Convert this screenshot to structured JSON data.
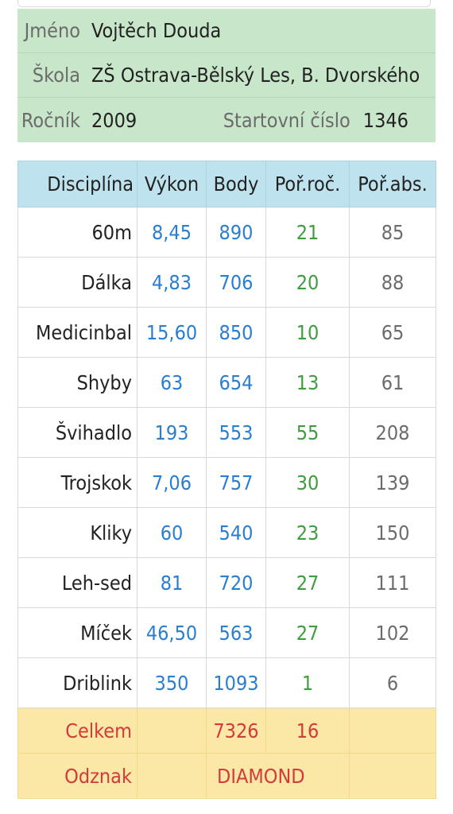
{
  "profile": {
    "name_label": "Jméno",
    "name": "Vojtěch Douda",
    "school_label": "Škola",
    "school": "ZŠ Ostrava-Bělský Les, B. Dvorského",
    "year_label": "Ročník",
    "year": "2009",
    "start_label": "Startovní číslo",
    "start_number": "1346"
  },
  "table": {
    "headers": {
      "discipline": "Disciplína",
      "performance": "Výkon",
      "points": "Body",
      "rank_year": "Poř.roč.",
      "rank_abs": "Poř.abs."
    },
    "rows": [
      {
        "discipline": "60m",
        "performance": "8,45",
        "points": "890",
        "rank_year": "21",
        "rank_abs": "85"
      },
      {
        "discipline": "Dálka",
        "performance": "4,83",
        "points": "706",
        "rank_year": "20",
        "rank_abs": "88"
      },
      {
        "discipline": "Medicinbal",
        "performance": "15,60",
        "points": "850",
        "rank_year": "10",
        "rank_abs": "65"
      },
      {
        "discipline": "Shyby",
        "performance": "63",
        "points": "654",
        "rank_year": "13",
        "rank_abs": "61"
      },
      {
        "discipline": "Švihadlo",
        "performance": "193",
        "points": "553",
        "rank_year": "55",
        "rank_abs": "208"
      },
      {
        "discipline": "Trojskok",
        "performance": "7,06",
        "points": "757",
        "rank_year": "30",
        "rank_abs": "139"
      },
      {
        "discipline": "Kliky",
        "performance": "60",
        "points": "540",
        "rank_year": "23",
        "rank_abs": "150"
      },
      {
        "discipline": "Leh-sed",
        "performance": "81",
        "points": "720",
        "rank_year": "27",
        "rank_abs": "111"
      },
      {
        "discipline": "Míček",
        "performance": "46,50",
        "points": "563",
        "rank_year": "27",
        "rank_abs": "102"
      },
      {
        "discipline": "Driblink",
        "performance": "350",
        "points": "1093",
        "rank_year": "1",
        "rank_abs": "6"
      }
    ],
    "total": {
      "label": "Celkem",
      "points": "7326",
      "rank_year": "16"
    },
    "badge": {
      "label": "Odznak",
      "value": "DIAMOND"
    }
  },
  "colors": {
    "info_bg": "#c8e6c9",
    "header_bg": "#bfe3ee",
    "performance": "#2a7ed0",
    "rank_year": "#3f9d3f",
    "rank_abs": "#6c6c6c",
    "total_bg": "#fbe7a6",
    "total_text": "#d33b3b"
  }
}
